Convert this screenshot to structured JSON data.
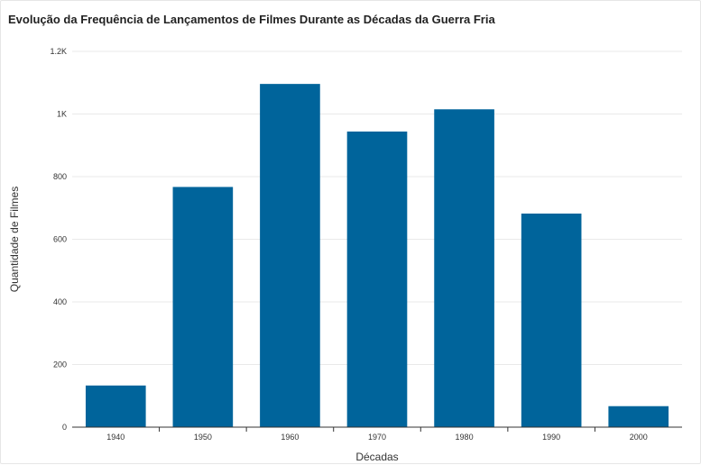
{
  "chart_data": {
    "type": "bar",
    "title": "Evolução da Frequência de Lançamentos de Filmes Durante as Décadas da Guerra Fria",
    "xlabel": "Décadas",
    "ylabel": "Quantidade de Filmes",
    "categories": [
      "1940",
      "1950",
      "1960",
      "1970",
      "1980",
      "1990",
      "2000"
    ],
    "values": [
      133,
      767,
      1096,
      944,
      1015,
      682,
      67
    ],
    "ylim": [
      0,
      1200
    ],
    "yticks": [
      0,
      200,
      400,
      600,
      800,
      1000,
      1200
    ],
    "ytick_labels": [
      "0",
      "200",
      "400",
      "600",
      "800",
      "1K",
      "1.2K"
    ],
    "grid": true,
    "bar_color": "#00649b",
    "legend": "none"
  }
}
